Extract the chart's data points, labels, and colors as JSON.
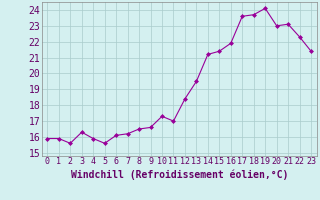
{
  "x": [
    0,
    1,
    2,
    3,
    4,
    5,
    6,
    7,
    8,
    9,
    10,
    11,
    12,
    13,
    14,
    15,
    16,
    17,
    18,
    19,
    20,
    21,
    22,
    23
  ],
  "y": [
    15.9,
    15.9,
    15.6,
    16.3,
    15.9,
    15.6,
    16.1,
    16.2,
    16.5,
    16.6,
    17.3,
    17.0,
    18.4,
    19.5,
    21.2,
    21.4,
    21.9,
    23.6,
    23.7,
    24.1,
    23.0,
    23.1,
    22.3,
    21.4
  ],
  "line_color": "#990099",
  "marker": "D",
  "marker_size": 2,
  "bg_color": "#d4f0f0",
  "grid_color": "#aacccc",
  "xlabel": "Windchill (Refroidissement éolien,°C)",
  "xlabel_fontsize": 7,
  "yticks": [
    15,
    16,
    17,
    18,
    19,
    20,
    21,
    22,
    23,
    24
  ],
  "xticks": [
    0,
    1,
    2,
    3,
    4,
    5,
    6,
    7,
    8,
    9,
    10,
    11,
    12,
    13,
    14,
    15,
    16,
    17,
    18,
    19,
    20,
    21,
    22,
    23
  ],
  "xlim": [
    -0.5,
    23.5
  ],
  "ylim": [
    14.8,
    24.5
  ],
  "ytick_fontsize": 7,
  "xtick_fontsize": 6
}
